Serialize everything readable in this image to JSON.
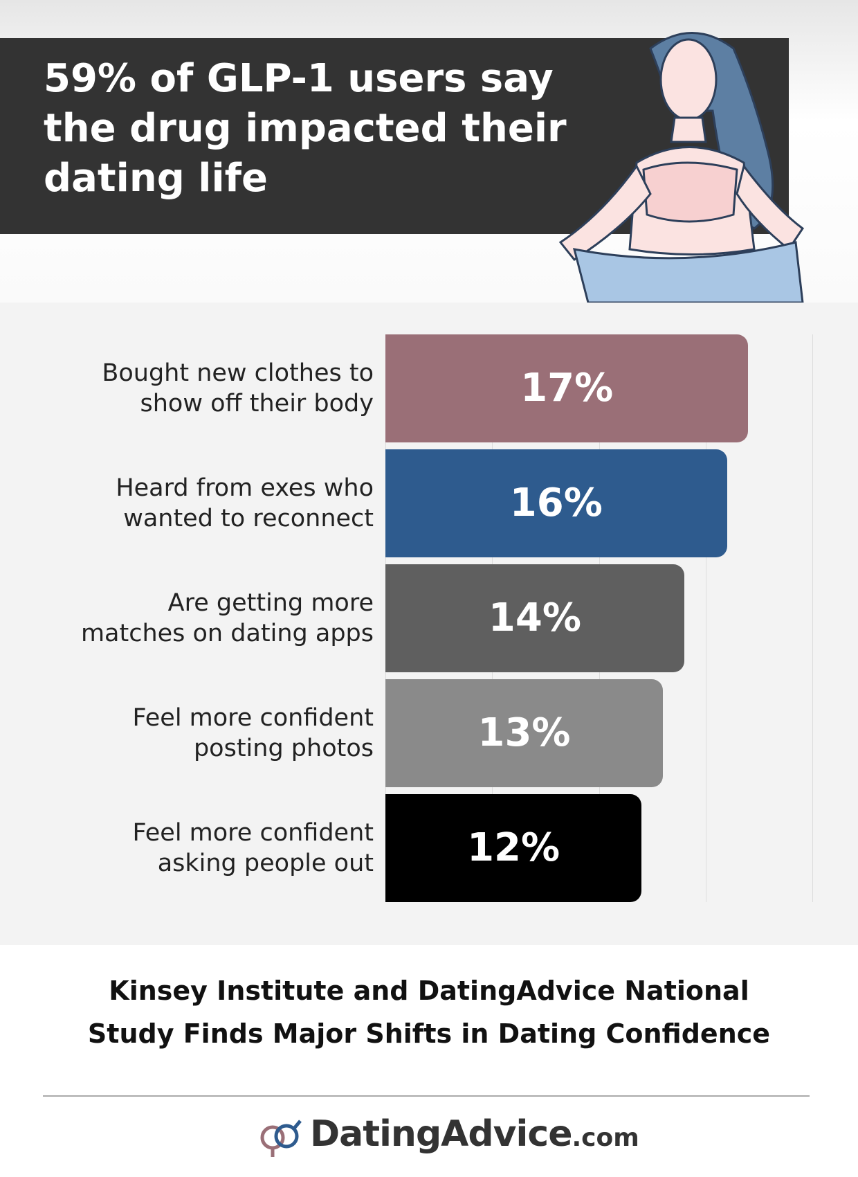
{
  "chart_data": {
    "type": "bar",
    "orientation": "horizontal",
    "title": "59% of GLP-1 users say the drug impacted their dating life",
    "categories": [
      "Bought new clothes to\nshow off their body",
      "Heard from exes who\nwanted to reconnect",
      "Are getting more\nmatches on dating apps",
      "Feel more confident\nposting photos",
      "Feel more confident\nasking people out"
    ],
    "values": [
      17,
      16,
      14,
      13,
      12
    ],
    "value_labels": [
      "17%",
      "16%",
      "14%",
      "13%",
      "12%"
    ],
    "colors": [
      "#9a6f77",
      "#2e5b8e",
      "#5f5f5f",
      "#8a8a8a",
      "#000000"
    ],
    "xlim": [
      0,
      20
    ],
    "xticks": [
      0,
      5,
      10,
      15,
      20
    ],
    "grid": true,
    "subtitle": "Kinsey Institute and DatingAdvice National Study Finds Major Shifts in Dating Confidence"
  },
  "logo": {
    "name": "DatingAdvice",
    "suffix": ".com"
  }
}
